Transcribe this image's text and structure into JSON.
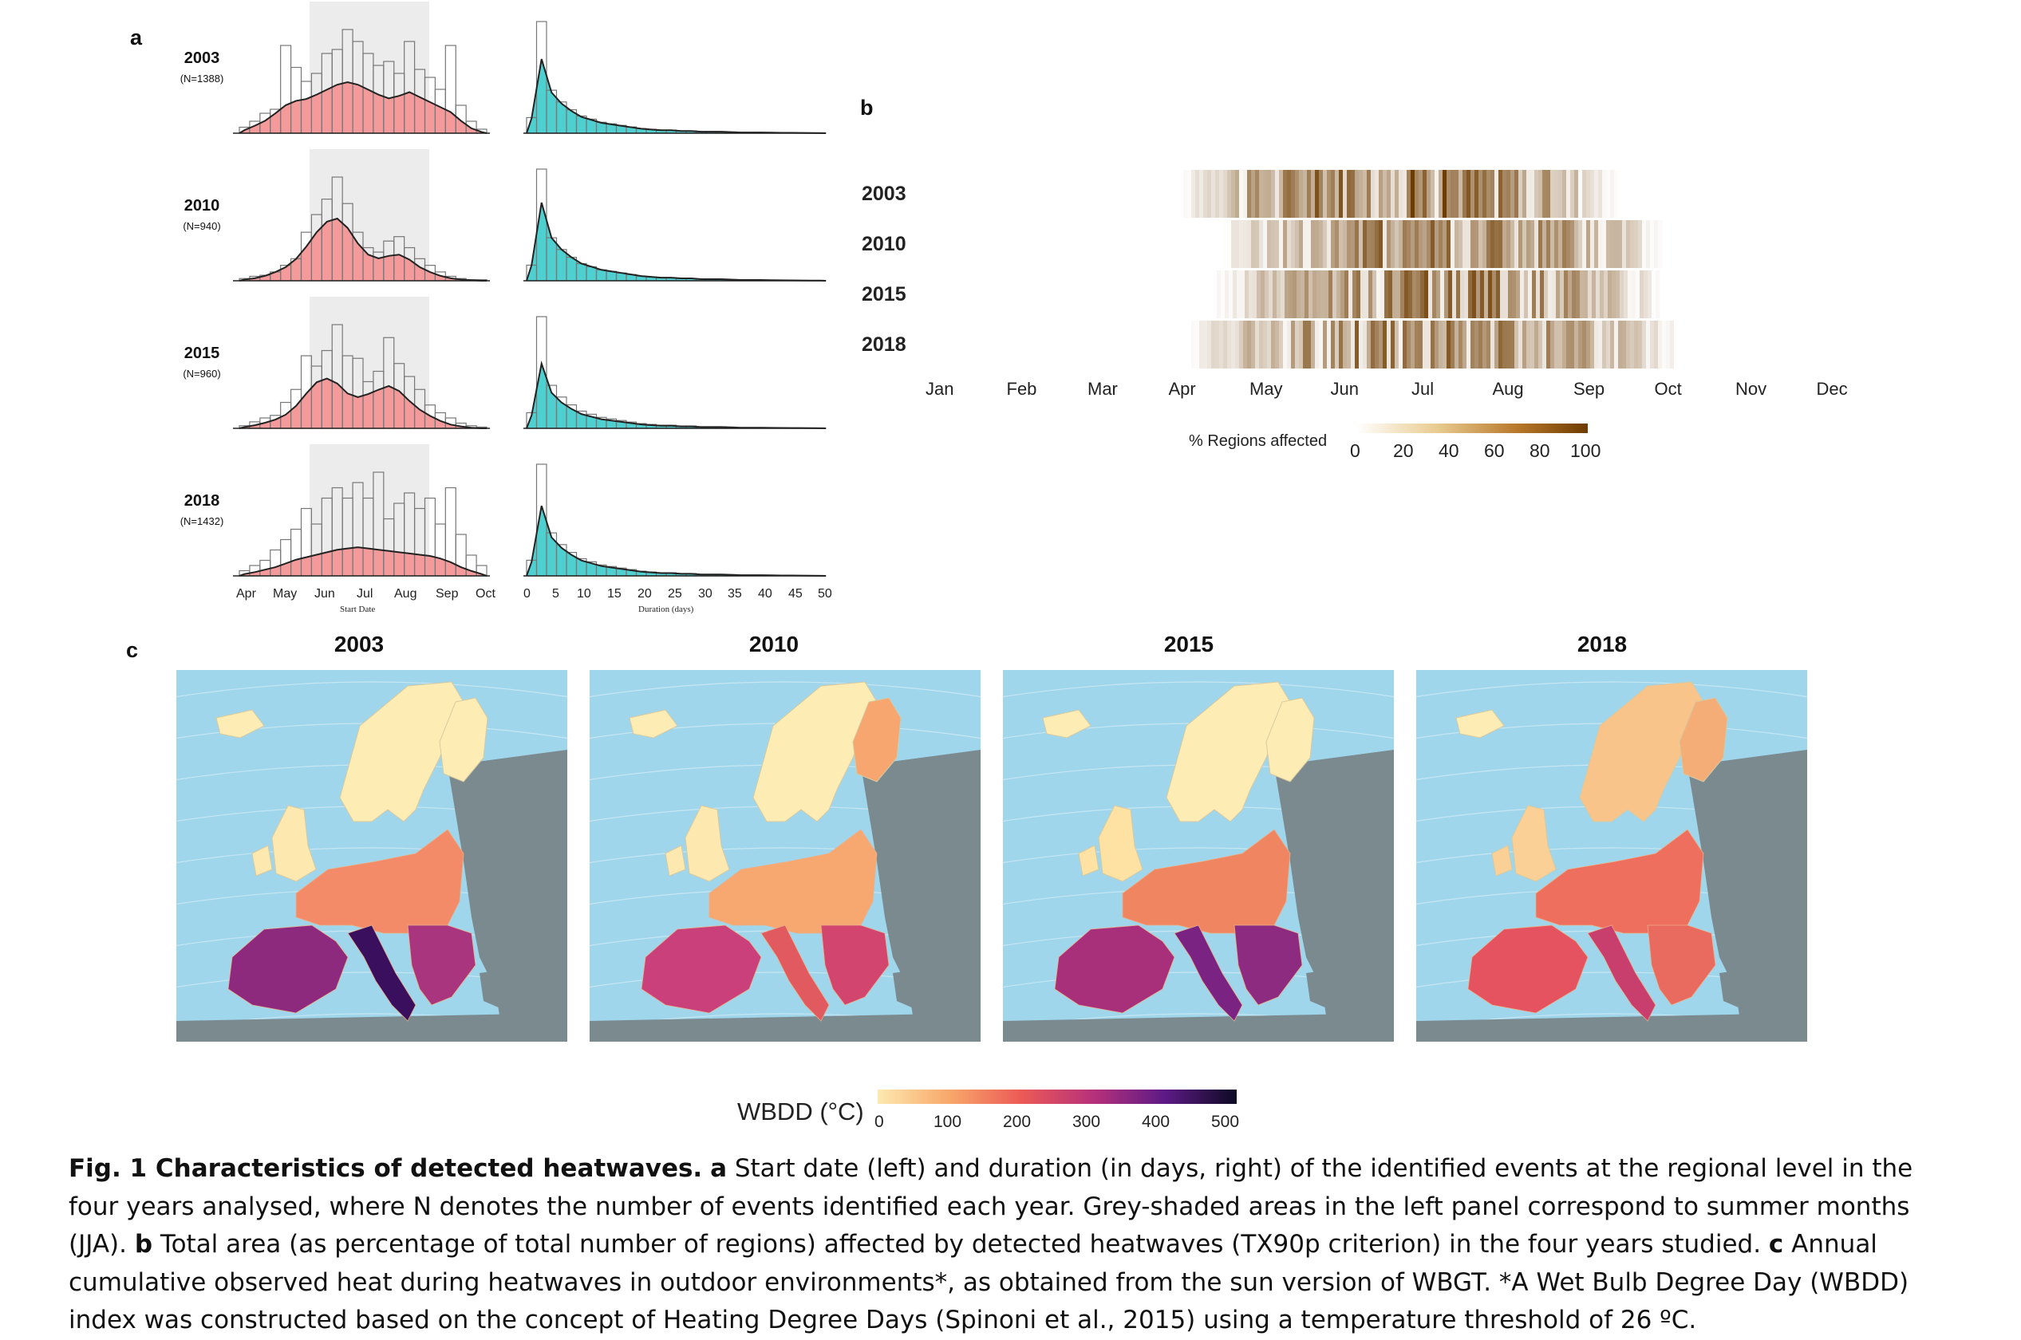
{
  "panel_letters": {
    "a": "a",
    "b": "b",
    "c": "c"
  },
  "panel_a": {
    "rows": [
      {
        "year": "2003",
        "n": "(N=1388)"
      },
      {
        "year": "2010",
        "n": "(N=940)"
      },
      {
        "year": "2015",
        "n": "(N=960)"
      },
      {
        "year": "2018",
        "n": "(N=1432)"
      }
    ],
    "start_ticks": [
      "Apr",
      "May",
      "Jun",
      "Jul",
      "Aug",
      "Sep",
      "Oct"
    ],
    "start_xlabel": "Start Date",
    "duration_ticks": [
      "0",
      "5",
      "10",
      "15",
      "20",
      "25",
      "30",
      "35",
      "40",
      "45",
      "50"
    ],
    "duration_xlabel": "Duration (days)",
    "colors": {
      "start_fill": "#f59a9a",
      "duration_fill": "#4fd0d0",
      "summer_shade": "#ececec"
    }
  },
  "panel_b": {
    "years": [
      "2003",
      "2010",
      "2015",
      "2018"
    ],
    "months": [
      "Jan",
      "Feb",
      "Mar",
      "Apr",
      "May",
      "Jun",
      "Jul",
      "Aug",
      "Sep",
      "Oct",
      "Nov",
      "Dec"
    ],
    "legend_label": "% Regions affected",
    "legend_ticks": [
      "0",
      "20",
      "40",
      "60",
      "80",
      "100"
    ],
    "colors": {
      "low": "#ffffff",
      "high": "#7a4400"
    }
  },
  "panel_c": {
    "titles": [
      "2003",
      "2010",
      "2015",
      "2018"
    ],
    "legend_label": "WBDD (°C)",
    "legend_ticks": [
      "0",
      "100",
      "200",
      "300",
      "400",
      "500"
    ],
    "colors": {
      "sea": "#9fd6ec",
      "land_outside": "#7a8a8f",
      "ramp_low": "#fde9b0",
      "ramp_high": "#0d0a22"
    }
  },
  "caption": {
    "fig": "Fig. 1 Characteristics of detected heatwaves.",
    "a_letter": "a",
    "a_text": " Start date (left) and duration (in days, right) of the identified events at the regional level in the four years analysed, where N denotes the number of events identified each year. Grey-shaded areas in the left panel correspond to summer months (JJA). ",
    "b_letter": "b",
    "b_text": " Total area (as percentage of total number of regions) affected by detected heatwaves (TX90p criterion) in the four years studied. ",
    "c_letter": "c",
    "c_text": " Annual cumulative observed heat during heatwaves in outdoor environments*, as obtained from the sun version of WBGT. *A Wet Bulb Degree Day (WBDD) index was constructed based on the concept of Heating Degree Days (Spinoni et al., 2015) using a temperature threshold of 26 ºC."
  }
}
